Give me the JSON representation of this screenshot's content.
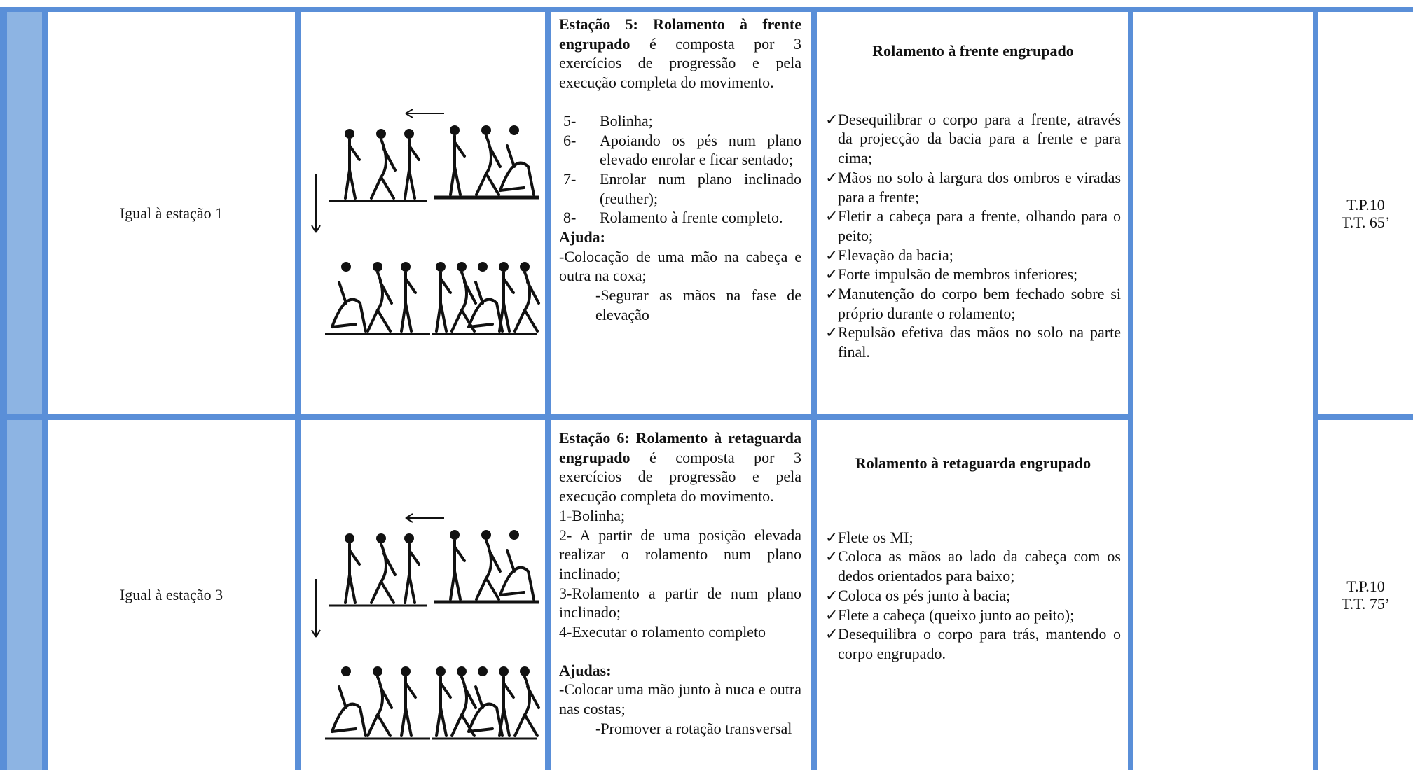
{
  "rows": [
    {
      "description": "Igual à estação 1",
      "station": {
        "title": "Estação 5: Rolamento à frente engrupado",
        "intro": " é composta por 3 exercícios de progressão e pela execução completa do movimento.",
        "steps": [
          {
            "number": "5-",
            "text": "Bolinha;"
          },
          {
            "number": "6-",
            "text": "Apoiando os pés num plano elevado enrolar e ficar sentado;"
          },
          {
            "number": "7-",
            "text": "Enrolar num plano inclinado (reuther);"
          },
          {
            "number": "8-",
            "text": "Rolamento à frente completo."
          }
        ],
        "help_title": "Ajuda:",
        "help": [
          "-Colocação de uma mão na cabeça e outra na coxa;",
          "-Segurar as mãos na fase de elevação"
        ]
      },
      "criteria": {
        "title": "Rolamento à frente engrupado",
        "items": [
          "Desequilibrar o corpo para a frente, através da projecção da bacia para a frente e para cima;",
          "Mãos no solo à largura dos ombros e viradas para a frente;",
          "Fletir a cabeça para a frente, olhando para o peito;",
          "Elevação da bacia;",
          "Forte impulsão de membros inferiores;",
          "Manutenção do corpo bem fechado sobre si próprio durante o rolamento;",
          "Repulsão efetiva das mãos no solo na parte final."
        ]
      },
      "time": [
        "T.P.10",
        "T.T. 65’"
      ]
    },
    {
      "description": "Igual à estação 3",
      "station": {
        "title": "Estação 6: Rolamento à retaguarda engrupado",
        "intro": " é composta por 3 exercícios de progressão e pela execução completa do movimento.",
        "steps": [
          {
            "text": "1-Bolinha;"
          },
          {
            "text": "2- A partir de uma posição elevada realizar o rolamento num plano inclinado;"
          },
          {
            "text": "3-Rolamento a partir de num plano inclinado;"
          },
          {
            "text": "4-Executar o rolamento completo"
          }
        ],
        "help_title": "Ajudas:",
        "help": [
          "-Colocar uma mão junto à nuca e outra nas costas;",
          "-Promover a rotação transversal"
        ]
      },
      "criteria": {
        "title": "Rolamento à retaguarda engrupado",
        "items": [
          "Flete os MI;",
          "Coloca as mãos ao lado da cabeça com os dedos orientados para baixo;",
          "Coloca os pés junto à bacia;",
          "Flete a cabeça (queixo junto ao peito);",
          "Desequilibra o corpo para trás, mantendo o corpo engrupado."
        ]
      },
      "time": [
        "T.P.10",
        "T.T. 75’"
      ]
    }
  ],
  "check": "✓"
}
